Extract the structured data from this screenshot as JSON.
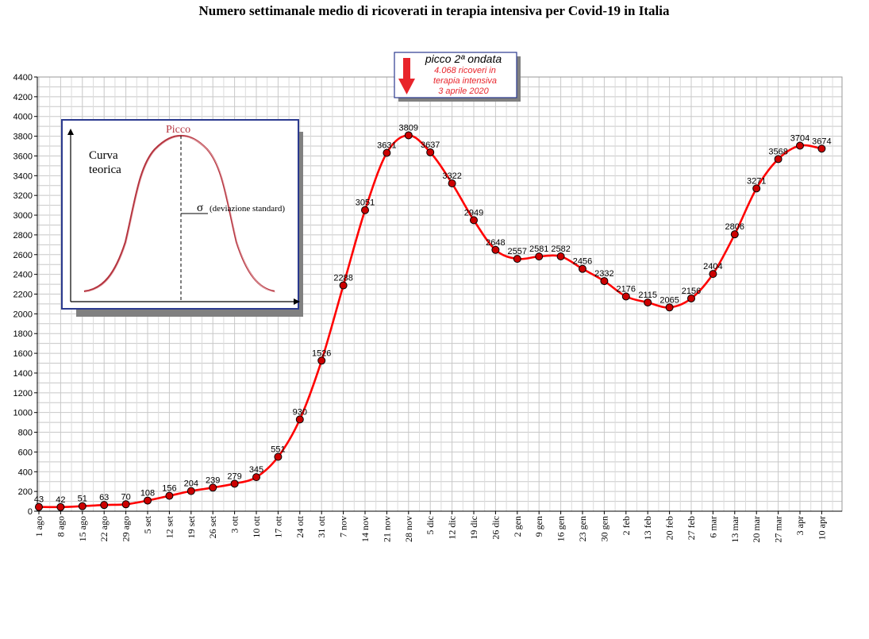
{
  "chart_data": {
    "type": "line",
    "title": "Numero settimanale medio di ricoverati in terapia intensiva per Covid-19 in Italia",
    "categories": [
      "1 ago",
      "8 ago",
      "15 ago",
      "22 ago",
      "29 ago",
      "5 set",
      "12 set",
      "19 set",
      "26 set",
      "3 ott",
      "10 ott",
      "17 ott",
      "24 ott",
      "31 ott",
      "7 nov",
      "14 nov",
      "21 nov",
      "28 nov",
      "5 dic",
      "12 dic",
      "19 dic",
      "26 dic",
      "2 gen",
      "9 gen",
      "16 gen",
      "23 gen",
      "30 gen",
      "2 feb",
      "13 feb",
      "20 feb",
      "27 feb",
      "6 mar",
      "13 mar",
      "20 mar",
      "27 mar",
      "3 apr",
      "10 apr"
    ],
    "values": [
      43,
      42,
      51,
      63,
      70,
      108,
      156,
      204,
      239,
      279,
      345,
      551,
      930,
      1526,
      2288,
      3051,
      3631,
      3809,
      3637,
      3322,
      2949,
      2648,
      2557,
      2581,
      2582,
      2456,
      2332,
      2176,
      2115,
      2065,
      2156,
      2404,
      2806,
      3271,
      3568,
      3704,
      3674
    ],
    "data_labels": [
      "43",
      "42",
      "51",
      "63",
      "70",
      "108",
      "156",
      "204",
      "239",
      "279",
      "345",
      "551",
      "930",
      "1526",
      "2288",
      "3051",
      "3631",
      "3809",
      "3637",
      "3322",
      "2949",
      "2648",
      "2557",
      "2581",
      "2582",
      "2456",
      "2332",
      "2176",
      "2115",
      "2065",
      "2156",
      "2404",
      "2806",
      "3271",
      "3568",
      "3704",
      "3674"
    ],
    "yticks": [
      "0",
      "200",
      "400",
      "600",
      "800",
      "1000",
      "1200",
      "1400",
      "1600",
      "1800",
      "2000",
      "2200",
      "2400",
      "2600",
      "2800",
      "3000",
      "3200",
      "3400",
      "3600",
      "3800",
      "4000",
      "4200",
      "4400"
    ],
    "ylim": [
      0,
      4400
    ],
    "grid": true,
    "series_color": "#ff0000",
    "marker_color": "#cc0000",
    "annotation": {
      "title": "picco 2ª ondata",
      "lines": [
        "4.068 ricoveri in",
        "terapia intensiva",
        "3 aprile 2020"
      ],
      "arrow_color": "#e8242b"
    },
    "inset": {
      "label_line1": "Curva",
      "label_line2": "teorica",
      "peak_label": "Picco",
      "sigma_symbol": "σ",
      "sigma_label": "(deviazione standard)",
      "border_color": "#2b3a8f"
    }
  }
}
